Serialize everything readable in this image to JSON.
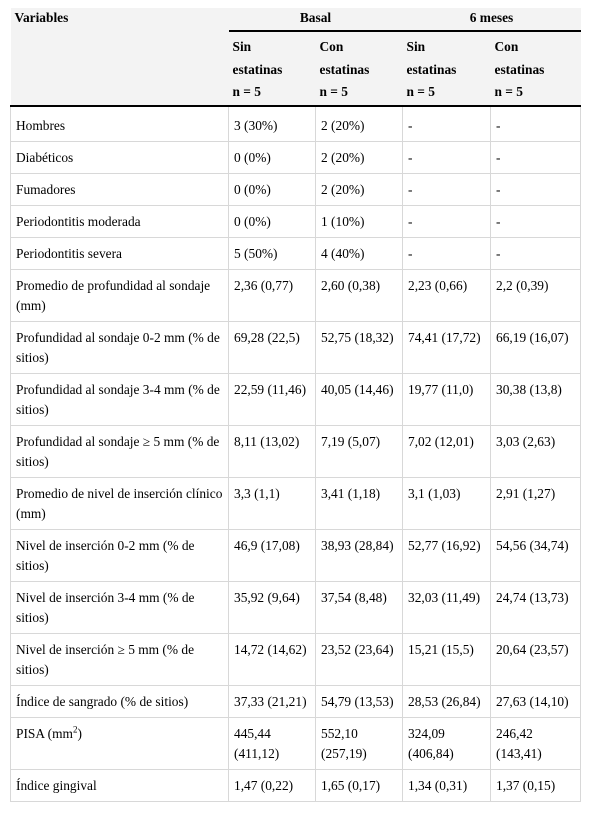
{
  "header": {
    "variables": "Variables",
    "groups": [
      "Basal",
      "6 meses"
    ],
    "subheaders": [
      {
        "line1": "Sin",
        "line2": "estatinas",
        "n": "n = 5"
      },
      {
        "line1": "Con",
        "line2": "estatinas",
        "n": "n = 5"
      },
      {
        "line1": "Sin",
        "line2": "estatinas",
        "n": "n = 5"
      },
      {
        "line1": "Con",
        "line2": "estatinas",
        "n": "n = 5"
      }
    ]
  },
  "rows": [
    {
      "label": "Hombres",
      "values": [
        "3 (30%)",
        "2 (20%)",
        "-",
        "-"
      ]
    },
    {
      "label": "Diabéticos",
      "values": [
        "0 (0%)",
        "2 (20%)",
        "-",
        "-"
      ]
    },
    {
      "label": "Fumadores",
      "values": [
        "0 (0%)",
        "2 (20%)",
        "-",
        "-"
      ]
    },
    {
      "label": "Periodontitis moderada",
      "values": [
        "0 (0%)",
        "1 (10%)",
        "-",
        "-"
      ]
    },
    {
      "label": "Periodontitis severa",
      "values": [
        "5 (50%)",
        "4 (40%)",
        "-",
        "-"
      ]
    },
    {
      "label": "Promedio de profundidad al sondaje (mm)",
      "values": [
        "2,36 (0,77)",
        "2,60 (0,38)",
        "2,23 (0,66)",
        "2,2 (0,39)"
      ]
    },
    {
      "label": "Profundidad al sondaje 0-2 mm (% de sitios)",
      "values": [
        "69,28 (22,5)",
        "52,75 (18,32)",
        "74,41 (17,72)",
        "66,19 (16,07)"
      ]
    },
    {
      "label": "Profundidad al sondaje 3-4 mm (% de sitios)",
      "values": [
        "22,59 (11,46)",
        "40,05 (14,46)",
        "19,77 (11,0)",
        "30,38 (13,8)"
      ]
    },
    {
      "label": "Profundidad al sondaje ≥ 5 mm (% de sitios)",
      "values": [
        "8,11 (13,02)",
        "7,19 (5,07)",
        "7,02 (12,01)",
        "3,03 (2,63)"
      ]
    },
    {
      "label": "Promedio de nivel de inserción clínico (mm)",
      "values": [
        "3,3 (1,1)",
        "3,41 (1,18)",
        "3,1 (1,03)",
        "2,91 (1,27)"
      ]
    },
    {
      "label": "Nivel de inserción 0-2 mm (% de sitios)",
      "values": [
        "46,9 (17,08)",
        "38,93 (28,84)",
        "52,77 (16,92)",
        "54,56 (34,74)"
      ]
    },
    {
      "label": "Nivel de inserción 3-4 mm (% de sitios)",
      "values": [
        "35,92 (9,64)",
        "37,54 (8,48)",
        "32,03 (11,49)",
        "24,74 (13,73)"
      ]
    },
    {
      "label": "Nivel de inserción ≥ 5 mm (% de sitios)",
      "values": [
        "14,72 (14,62)",
        "23,52 (23,64)",
        "15,21 (15,5)",
        "20,64 (23,57)"
      ]
    },
    {
      "label": "Índice de sangrado (% de sitios)",
      "values": [
        "37,33 (21,21)",
        "54,79 (13,53)",
        "28,53 (26,84)",
        "27,63 (14,10)"
      ]
    },
    {
      "label": "PISA (mm",
      "label_sup": "2",
      "label_after": ")",
      "values": [
        "445,44 (411,12)",
        "552,10 (257,19)",
        "324,09 (406,84)",
        "246,42 (143,41)"
      ]
    },
    {
      "label": "Índice gingival",
      "values": [
        "1,47 (0,22)",
        "1,65 (0,17)",
        "1,34 (0,31)",
        "1,37 (0,15)"
      ]
    }
  ]
}
